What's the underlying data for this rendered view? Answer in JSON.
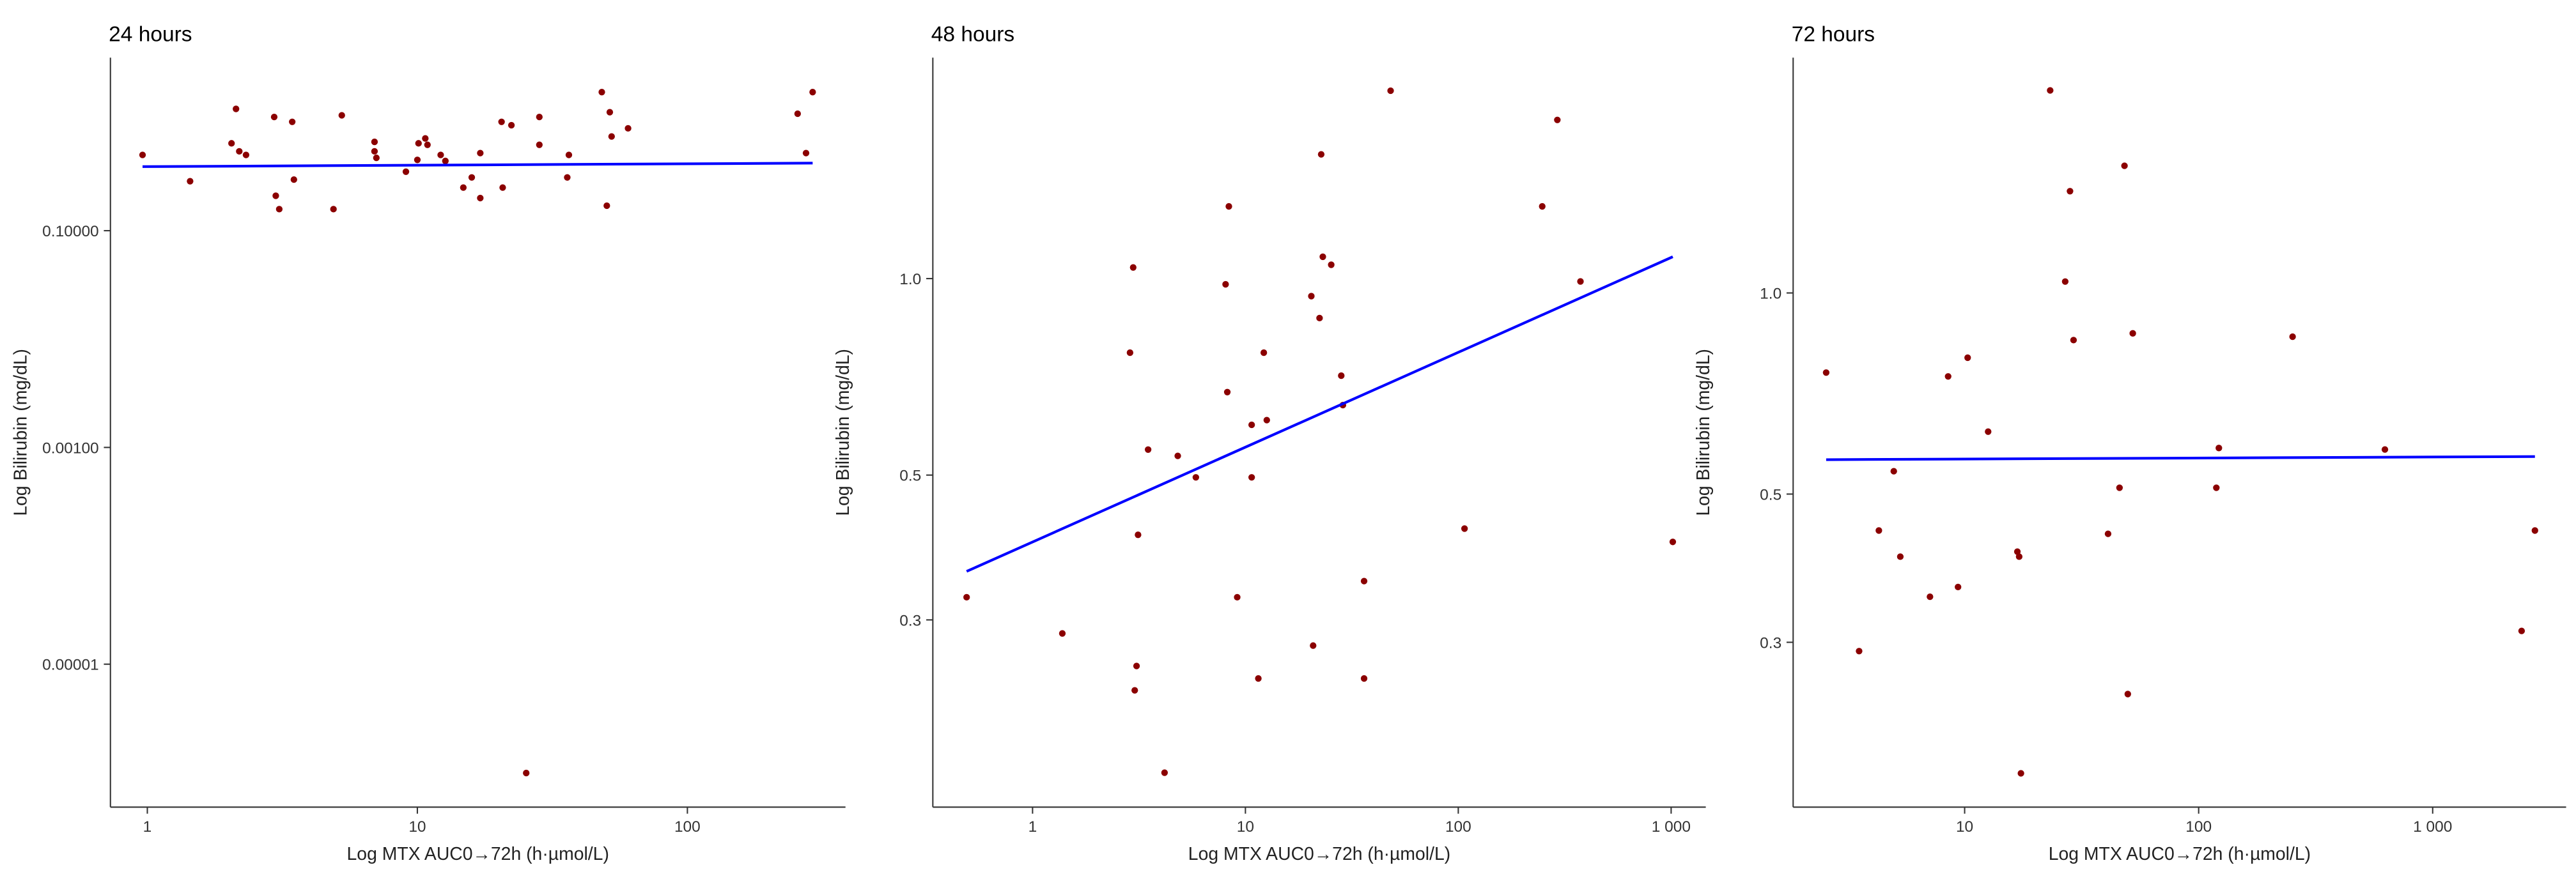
{
  "chart_data": [
    {
      "type": "scatter",
      "title": "24 hours",
      "x_label": "Log MTX AUC0→72h  (h·µmol/L)",
      "y_label": "Log Bilirubin (mg/dL)",
      "xscale": "log",
      "yscale": "log",
      "xlim": [
        0.73,
        385
      ],
      "ylim": [
        4.8e-07,
        3.95
      ],
      "xticks": [
        1,
        10,
        100
      ],
      "yticks": [
        {
          "value": 0.1,
          "label": "0.10000"
        },
        {
          "value": 0.001,
          "label": "0.00100"
        },
        {
          "value": 1e-05,
          "label": "0.00001"
        }
      ],
      "color": "#8b0000",
      "x": [
        0.96,
        1.44,
        2.05,
        2.13,
        2.19,
        2.32,
        2.95,
        2.99,
        3.08,
        3.44,
        3.49,
        4.89,
        5.25,
        6.94,
        6.94,
        7.05,
        9.07,
        10.0,
        10.1,
        10.7,
        10.9,
        12.2,
        12.7,
        14.8,
        15.9,
        17.1,
        17.1,
        20.5,
        20.7,
        22.3,
        28.3,
        28.3,
        35.9,
        36.4,
        48.2,
        50.3,
        51.6,
        52.4,
        60.3,
        256,
        275,
        291,
        25.3
      ],
      "values": [
        0.5,
        0.286,
        0.64,
        1.33,
        0.54,
        0.5,
        1.12,
        0.21,
        0.158,
        1.01,
        0.296,
        0.158,
        1.16,
        0.66,
        0.54,
        0.47,
        0.35,
        0.45,
        0.64,
        0.71,
        0.62,
        0.5,
        0.44,
        0.25,
        0.31,
        0.2,
        0.52,
        1.01,
        0.25,
        0.94,
        1.12,
        0.62,
        0.31,
        0.5,
        1.9,
        0.17,
        1.24,
        0.74,
        0.88,
        1.2,
        0.52,
        1.9,
        9.9e-07
      ],
      "fit": {
        "color": "#0000ff",
        "x": [
          0.96,
          291
        ],
        "values": [
          0.39,
          0.42
        ]
      }
    },
    {
      "type": "scatter",
      "title": "48 hours",
      "x_label": "Log MTX AUC0→72h  (h·µmol/L)",
      "y_label": "Log Bilirubin (mg/dL)",
      "xscale": "log",
      "yscale": "log",
      "xlim": [
        0.34,
        1455
      ],
      "ylim": [
        0.155,
        2.18
      ],
      "xticks": [
        1,
        10,
        100,
        {
          "value": 1000,
          "label": "1 000"
        }
      ],
      "yticks": [
        {
          "value": 1,
          "label": "1.0"
        },
        0.5,
        0.3
      ],
      "color": "#8b0000",
      "x": [
        0.49,
        1.38,
        2.97,
        2.87,
        3.13,
        3.02,
        3.08,
        3.49,
        4.17,
        4.81,
        5.85,
        8.07,
        8.36,
        8.22,
        9.15,
        10.7,
        10.7,
        11.5,
        12.2,
        12.6,
        20.4,
        20.8,
        22.3,
        22.7,
        23.1,
        25.3,
        28.2,
        28.7,
        36.1,
        36.1,
        48.1,
        107,
        248,
        292,
        375,
        1018
      ],
      "values": [
        0.325,
        0.286,
        1.04,
        0.77,
        0.405,
        0.234,
        0.255,
        0.547,
        0.175,
        0.535,
        0.496,
        0.98,
        1.29,
        0.67,
        0.325,
        0.597,
        0.496,
        0.244,
        0.77,
        0.607,
        0.94,
        0.274,
        0.87,
        1.55,
        1.08,
        1.05,
        0.71,
        0.64,
        0.344,
        0.244,
        1.94,
        0.414,
        1.29,
        1.75,
        0.99,
        0.395
      ],
      "fit": {
        "color": "#0000ff",
        "x": [
          0.49,
          1018
        ],
        "values": [
          0.356,
          1.08
        ]
      }
    },
    {
      "type": "scatter",
      "title": "72 hours",
      "x_label": "Log MTX AUC0→72h  (h·µmol/L)",
      "y_label": "Log Bilirubin (mg/dL)",
      "xscale": "log",
      "yscale": "log",
      "xlim": [
        1.85,
        3717
      ],
      "ylim": [
        0.17,
        2.25
      ],
      "xticks": [
        10,
        100,
        {
          "value": 1000,
          "label": "1 000"
        }
      ],
      "yticks": [
        {
          "value": 1,
          "label": "1.0"
        },
        0.5,
        0.3
      ],
      "color": "#8b0000",
      "x": [
        2.56,
        3.54,
        4.3,
        4.98,
        5.31,
        7.11,
        8.5,
        9.37,
        10.3,
        12.6,
        16.8,
        17.1,
        17.4,
        23.2,
        26.9,
        28.2,
        29.2,
        41.0,
        45.9,
        48.2,
        49.8,
        52.3,
        122,
        119,
        252,
        625,
        2399,
        2735
      ],
      "values": [
        0.76,
        0.291,
        0.441,
        0.541,
        0.403,
        0.351,
        0.75,
        0.363,
        0.8,
        0.62,
        0.41,
        0.403,
        0.191,
        2.01,
        1.04,
        1.42,
        0.85,
        0.436,
        0.511,
        1.55,
        0.251,
        0.87,
        0.586,
        0.511,
        0.86,
        0.583,
        0.312,
        0.441
      ],
      "fit": {
        "color": "#0000ff",
        "x": [
          2.56,
          2735
        ],
        "values": [
          0.563,
          0.569
        ]
      }
    }
  ]
}
